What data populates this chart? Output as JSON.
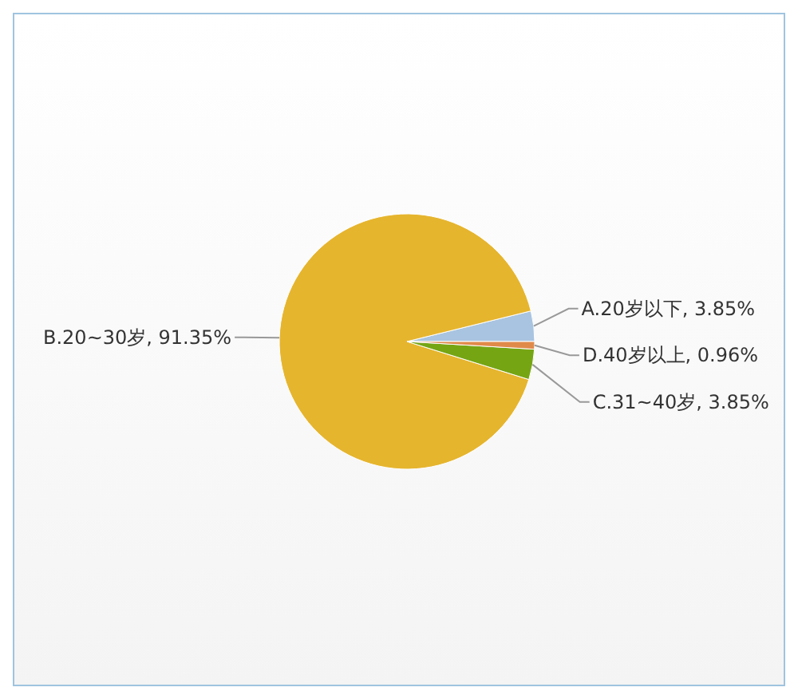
{
  "chart_data": {
    "type": "pie",
    "categories": [
      "A.20岁以下",
      "B.20~30岁",
      "C.31~40岁",
      "D.40岁以上"
    ],
    "values": [
      3.85,
      91.35,
      3.85,
      0.96
    ],
    "colors": [
      "#a8c4e0",
      "#e6b52e",
      "#76a514",
      "#e08a4a"
    ],
    "value_labels": [
      "3.85%",
      "91.35%",
      "3.85%",
      "0.96%"
    ],
    "legend": false
  }
}
